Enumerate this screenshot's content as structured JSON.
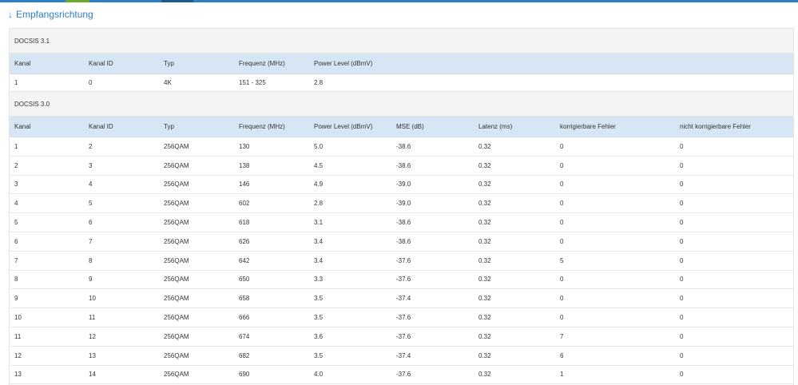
{
  "heading": {
    "arrow": "↓",
    "text": "Empfangsrichtung"
  },
  "sections": [
    {
      "title": "DOCSIS 3.1",
      "columns": [
        "Kanal",
        "Kanal ID",
        "Typ",
        "Frequenz (MHz)",
        "Power Level (dBmV)"
      ],
      "rows": [
        [
          "1",
          "0",
          "4K",
          "151 - 325",
          "2.8"
        ]
      ]
    },
    {
      "title": "DOCSIS 3.0",
      "columns": [
        "Kanal",
        "Kanal ID",
        "Typ",
        "Frequenz (MHz)",
        "Power Level (dBmV)",
        "MSE (dB)",
        "Latenz (ms)",
        "korrigierbare Fehler",
        "nicht korrigierbare Fehler"
      ],
      "rows": [
        [
          "1",
          "2",
          "256QAM",
          "130",
          "5.0",
          "-38.6",
          "0.32",
          "0",
          "0"
        ],
        [
          "2",
          "3",
          "256QAM",
          "138",
          "4.5",
          "-38.6",
          "0.32",
          "0",
          "0"
        ],
        [
          "3",
          "4",
          "256QAM",
          "146",
          "4.9",
          "-39.0",
          "0.32",
          "0",
          "0"
        ],
        [
          "4",
          "5",
          "256QAM",
          "602",
          "2.8",
          "-39.0",
          "0.32",
          "0",
          "0"
        ],
        [
          "5",
          "6",
          "256QAM",
          "618",
          "3.1",
          "-38.6",
          "0.32",
          "0",
          "0"
        ],
        [
          "6",
          "7",
          "256QAM",
          "626",
          "3.4",
          "-38.6",
          "0.32",
          "0",
          "0"
        ],
        [
          "7",
          "8",
          "256QAM",
          "642",
          "3.4",
          "-37.6",
          "0.32",
          "5",
          "0"
        ],
        [
          "8",
          "9",
          "256QAM",
          "650",
          "3.3",
          "-37.6",
          "0.32",
          "0",
          "0"
        ],
        [
          "9",
          "10",
          "256QAM",
          "658",
          "3.5",
          "-37.4",
          "0.32",
          "0",
          "0"
        ],
        [
          "10",
          "11",
          "256QAM",
          "666",
          "3.5",
          "-37.6",
          "0.32",
          "0",
          "0"
        ],
        [
          "11",
          "12",
          "256QAM",
          "674",
          "3.6",
          "-37.6",
          "0.32",
          "7",
          "0"
        ],
        [
          "12",
          "13",
          "256QAM",
          "682",
          "3.5",
          "-37.4",
          "0.32",
          "6",
          "0"
        ],
        [
          "13",
          "14",
          "256QAM",
          "690",
          "4.0",
          "-37.6",
          "0.32",
          "1",
          "0"
        ]
      ]
    }
  ]
}
